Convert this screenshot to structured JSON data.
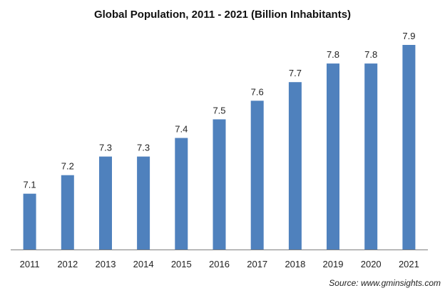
{
  "chart_data": {
    "type": "bar",
    "title": "Global Population, 2011 - 2021 (Billion Inhabitants)",
    "xlabel": "",
    "ylabel": "",
    "categories": [
      "2011",
      "2012",
      "2013",
      "2014",
      "2015",
      "2016",
      "2017",
      "2018",
      "2019",
      "2020",
      "2021"
    ],
    "values": [
      7.1,
      7.2,
      7.3,
      7.3,
      7.4,
      7.5,
      7.6,
      7.7,
      7.8,
      7.8,
      7.9
    ],
    "value_labels": [
      "7.1",
      "7.2",
      "7.3",
      "7.3",
      "7.4",
      "7.5",
      "7.6",
      "7.7",
      "7.8",
      "7.8",
      "7.9"
    ],
    "ylim": [
      6.8,
      7.95
    ],
    "grid": false,
    "legend": "none",
    "bar_color": "#4f81bd",
    "axis_color": "#7f7f7f",
    "source": "Source: www.gminsights.com"
  }
}
